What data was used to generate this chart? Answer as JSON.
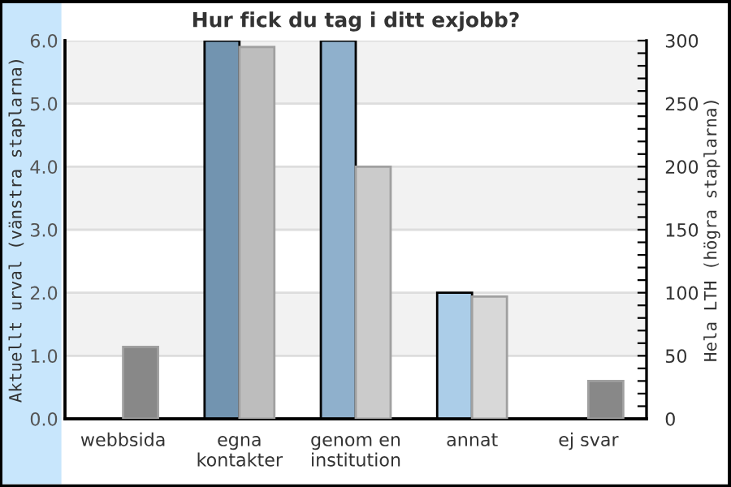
{
  "chart_data": {
    "type": "bar",
    "title": "Hur fick du tag i ditt exjobb?",
    "categories": [
      "webbsida",
      "egna\nkontakter",
      "genom en\ninstitution",
      "annat",
      "ej svar"
    ],
    "ylabel": "Aktuellt urval (vänstra staplarna)",
    "y2label": "Hela LTH (högra staplarna)",
    "series": [
      {
        "axis": "y",
        "colors": [
          "#7294b0",
          "#7294b0",
          "#8fb0cc",
          "#abcde8",
          "#abcde8"
        ],
        "values": [
          null,
          6.0,
          6.0,
          2.0,
          null
        ]
      },
      {
        "axis": "y2",
        "colors": [
          "#888888",
          "#bdbdbd",
          "#cbcbcb",
          "#d8d8d8",
          "#888888"
        ],
        "values": [
          57,
          295,
          200,
          97,
          30
        ]
      }
    ],
    "ylim": [
      0,
      6
    ],
    "yticks": [
      {
        "value": 0,
        "label": "0.0"
      },
      {
        "value": 1,
        "label": "1.0"
      },
      {
        "value": 2,
        "label": "2.0"
      },
      {
        "value": 3,
        "label": "3.0"
      },
      {
        "value": 4,
        "label": "4.0"
      },
      {
        "value": 5,
        "label": "5.0"
      },
      {
        "value": 6,
        "label": "6.0"
      }
    ],
    "y2lim": [
      0,
      300
    ],
    "y2ticks": [
      0,
      {
        "value": 10,
        "label": null
      },
      {
        "value": 20,
        "label": null
      },
      {
        "value": 30,
        "label": null
      },
      {
        "value": 40,
        "label": null
      },
      50,
      {
        "value": 60,
        "label": null
      },
      {
        "value": 70,
        "label": null
      },
      {
        "value": 80,
        "label": null
      },
      {
        "value": 90,
        "label": null
      },
      100,
      {
        "value": 110,
        "label": null
      },
      {
        "value": 120,
        "label": null
      },
      {
        "value": 130,
        "label": null
      },
      {
        "value": 140,
        "label": null
      },
      150,
      {
        "value": 160,
        "label": null
      },
      {
        "value": 170,
        "label": null
      },
      {
        "value": 180,
        "label": null
      },
      {
        "value": 190,
        "label": null
      },
      200,
      {
        "value": 210,
        "label": null
      },
      {
        "value": 220,
        "label": null
      },
      {
        "value": 230,
        "label": null
      },
      {
        "value": 240,
        "label": null
      },
      250,
      {
        "value": 260,
        "label": null
      },
      {
        "value": 270,
        "label": null
      },
      {
        "value": 280,
        "label": null
      },
      {
        "value": 290,
        "label": null
      },
      300
    ],
    "grid": "y",
    "legend": false
  }
}
